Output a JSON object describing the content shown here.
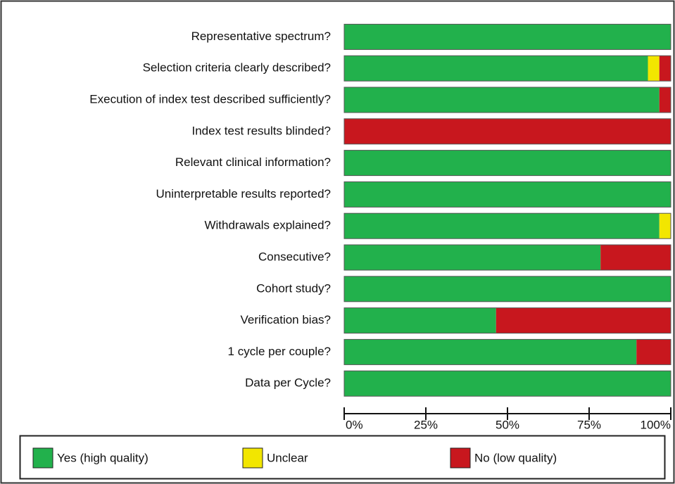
{
  "chart_data": {
    "type": "stacked-bar-horizontal",
    "categories": [
      "Representative spectrum?",
      "Selection criteria clearly described?",
      "Execution of index test described sufficiently?",
      "Index test results blinded?",
      "Relevant clinical information?",
      "Uninterpretable results reported?",
      "Withdrawals explained?",
      "Consecutive?",
      "Cohort study?",
      "Verification bias?",
      "1 cycle per couple?",
      "Data per Cycle?"
    ],
    "series": [
      {
        "name": "Yes (high quality)",
        "color": "#22b14c",
        "values": [
          100,
          93,
          96.5,
          0,
          100,
          100,
          96.5,
          78.5,
          100,
          46.5,
          89.5,
          100
        ]
      },
      {
        "name": "Unclear",
        "color": "#f2e600",
        "values": [
          0,
          3.5,
          0,
          0,
          0,
          0,
          3.5,
          0,
          0,
          0,
          0,
          0
        ]
      },
      {
        "name": "No (low quality)",
        "color": "#c8171e",
        "values": [
          0,
          3.5,
          3.5,
          100,
          0,
          0,
          0,
          21.5,
          0,
          53.5,
          10.5,
          0
        ]
      }
    ],
    "xlim": [
      0,
      100
    ],
    "xticks": [
      {
        "value": 0,
        "label": "0%"
      },
      {
        "value": 25,
        "label": "25%"
      },
      {
        "value": 50,
        "label": "50%"
      },
      {
        "value": 75,
        "label": "75%"
      },
      {
        "value": 100,
        "label": "100%"
      }
    ]
  }
}
